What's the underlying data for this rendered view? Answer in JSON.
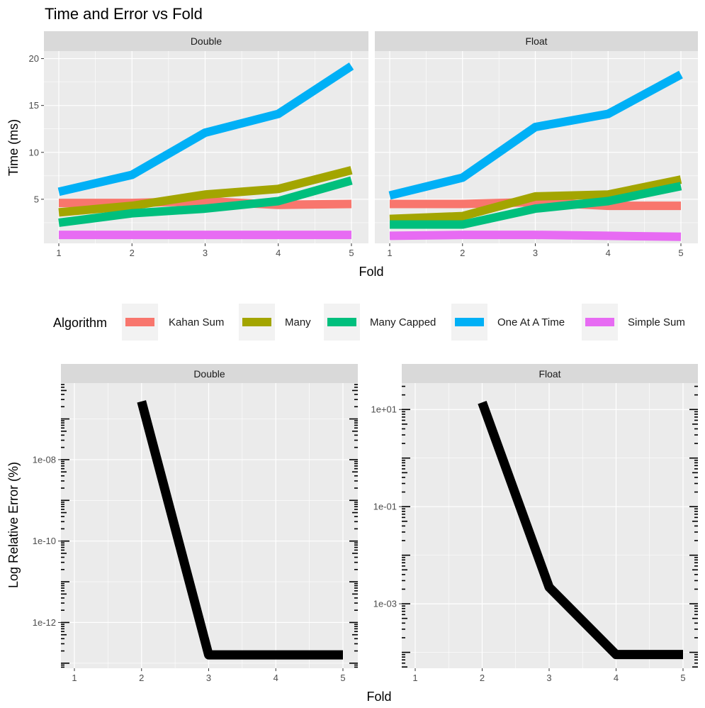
{
  "title": "Time and Error vs Fold",
  "legend": {
    "title": "Algorithm",
    "placement": "middle",
    "entries": [
      {
        "name": "Kahan Sum",
        "color": "#F8766D"
      },
      {
        "name": "Many",
        "color": "#A3A500"
      },
      {
        "name": "Many Capped",
        "color": "#00BF7D"
      },
      {
        "name": "One At A Time",
        "color": "#00B0F6"
      },
      {
        "name": "Simple Sum",
        "color": "#E76BF3"
      }
    ]
  },
  "chart_data": [
    {
      "type": "line",
      "facets": [
        "Double",
        "Float"
      ],
      "xlabel": "Fold",
      "ylabel": "Time (ms)",
      "x": [
        1,
        2,
        3,
        4,
        5
      ],
      "xticks": [
        "1",
        "2",
        "3",
        "4",
        "5"
      ],
      "yticks": [
        "5",
        "10",
        "15",
        "20"
      ],
      "ylim": [
        0.3,
        20.8
      ],
      "grid": true,
      "panels": {
        "Double": [
          {
            "name": "Kahan Sum",
            "values": [
              4.6,
              4.6,
              4.8,
              4.4,
              4.5
            ]
          },
          {
            "name": "Many",
            "values": [
              3.6,
              4.3,
              5.5,
              6.1,
              8.1
            ]
          },
          {
            "name": "Many Capped",
            "values": [
              2.5,
              3.5,
              4.0,
              4.8,
              7.0
            ]
          },
          {
            "name": "One At A Time",
            "values": [
              5.8,
              7.6,
              12.1,
              14.1,
              19.2
            ]
          },
          {
            "name": "Simple Sum",
            "values": [
              1.2,
              1.2,
              1.2,
              1.2,
              1.2
            ]
          }
        ],
        "Float": [
          {
            "name": "Kahan Sum",
            "values": [
              4.5,
              4.5,
              4.7,
              4.3,
              4.3
            ]
          },
          {
            "name": "Many",
            "values": [
              2.9,
              3.2,
              5.3,
              5.5,
              7.1
            ]
          },
          {
            "name": "Many Capped",
            "values": [
              2.3,
              2.3,
              4.0,
              4.8,
              6.4
            ]
          },
          {
            "name": "One At A Time",
            "values": [
              5.4,
              7.3,
              12.7,
              14.1,
              18.3
            ]
          },
          {
            "name": "Simple Sum",
            "values": [
              1.1,
              1.2,
              1.2,
              1.1,
              1.0
            ]
          }
        ]
      }
    },
    {
      "type": "line",
      "facets": [
        "Double",
        "Float"
      ],
      "xlabel": "Fold",
      "ylabel": "Log Relative Error (%)",
      "x": [
        1,
        2,
        3,
        4,
        5
      ],
      "xticks": [
        "1",
        "2",
        "3",
        "4",
        "5"
      ],
      "yscale": "log",
      "grid": true,
      "log_ticks": "both sides",
      "line_color": "#000000",
      "panels": {
        "Double": {
          "values": [
            null,
            2.7e-07,
            1.6e-13,
            1.6e-13,
            1.6e-13
          ],
          "yticks": [
            "1e-08",
            "1e-10",
            "1e-12"
          ],
          "ylim": [
            7.5e-14,
            7.6e-07
          ]
        },
        "Float": {
          "values": [
            null,
            14,
            0.0022,
            9e-05,
            9e-05
          ],
          "yticks": [
            "1e+01",
            "1e-01",
            "1e-03"
          ],
          "ylim": [
            4.7e-05,
            35
          ]
        }
      }
    }
  ]
}
